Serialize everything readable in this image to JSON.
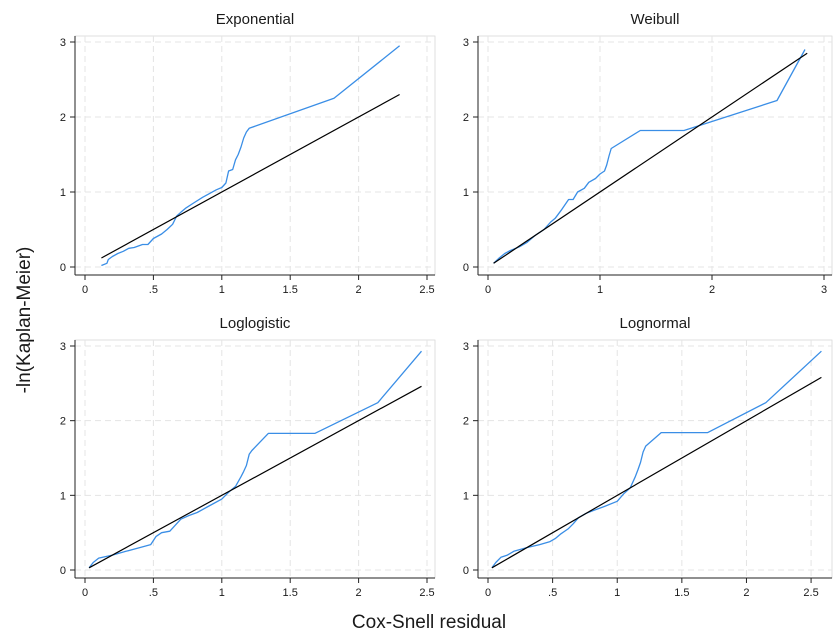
{
  "figure": {
    "ylabel": "-ln(Kaplan-Meier)",
    "xlabel": "Cox-Snell residual"
  },
  "colors": {
    "km_series": "#3a8ee6",
    "reference_line": "#000000"
  },
  "chart_data": [
    {
      "type": "line",
      "title": "Exponential",
      "xlim": [
        0,
        2.5
      ],
      "ylim": [
        0,
        3
      ],
      "xticks": [
        0,
        0.5,
        1,
        1.5,
        2,
        2.5
      ],
      "xtick_labels": [
        "0",
        ".5",
        "1",
        "1.5",
        "2",
        "2.5"
      ],
      "yticks": [
        0,
        1,
        2,
        3
      ],
      "ytick_labels": [
        "0",
        "1",
        "2",
        "3"
      ],
      "grid": true,
      "series": [
        {
          "x": [
            0.12,
            0.16,
            0.17,
            0.2,
            0.24,
            0.28,
            0.32,
            0.36,
            0.42,
            0.46,
            0.5,
            0.56,
            0.6,
            0.64,
            0.67,
            0.7,
            0.74,
            0.8,
            0.86,
            0.9,
            0.96,
            1.0,
            1.03,
            1.05,
            1.08,
            1.1,
            1.12,
            1.14,
            1.16,
            1.18,
            1.2,
            1.82,
            2.3
          ],
          "y": [
            0.02,
            0.05,
            0.1,
            0.14,
            0.18,
            0.21,
            0.25,
            0.26,
            0.3,
            0.3,
            0.38,
            0.44,
            0.5,
            0.57,
            0.68,
            0.73,
            0.79,
            0.86,
            0.93,
            0.97,
            1.03,
            1.06,
            1.12,
            1.28,
            1.3,
            1.43,
            1.5,
            1.6,
            1.72,
            1.8,
            1.85,
            2.25,
            2.95
          ]
        },
        {
          "x": [
            0.12,
            2.3
          ],
          "y": [
            0.12,
            2.3
          ]
        }
      ]
    },
    {
      "type": "line",
      "title": "Weibull",
      "xlim": [
        0,
        3
      ],
      "ylim": [
        0,
        3
      ],
      "xticks": [
        0,
        1,
        2,
        3
      ],
      "xtick_labels": [
        "0",
        "1",
        "2",
        "3"
      ],
      "yticks": [
        0,
        1,
        2,
        3
      ],
      "ytick_labels": [
        "0",
        "1",
        "2",
        "3"
      ],
      "grid": true,
      "series": [
        {
          "x": [
            0.05,
            0.1,
            0.15,
            0.2,
            0.28,
            0.35,
            0.42,
            0.5,
            0.56,
            0.6,
            0.66,
            0.72,
            0.76,
            0.8,
            0.86,
            0.9,
            0.96,
            1.0,
            1.04,
            1.06,
            1.08,
            1.1,
            1.36,
            1.75,
            2.58,
            2.83
          ],
          "y": [
            0.05,
            0.12,
            0.18,
            0.22,
            0.27,
            0.33,
            0.42,
            0.5,
            0.6,
            0.65,
            0.77,
            0.9,
            0.9,
            1.0,
            1.05,
            1.13,
            1.18,
            1.24,
            1.28,
            1.36,
            1.48,
            1.58,
            1.82,
            1.82,
            2.22,
            2.9
          ]
        },
        {
          "x": [
            0.05,
            2.85
          ],
          "y": [
            0.05,
            2.85
          ]
        }
      ]
    },
    {
      "type": "line",
      "title": "Loglogistic",
      "xlim": [
        0,
        2.5
      ],
      "ylim": [
        0,
        3
      ],
      "xticks": [
        0,
        0.5,
        1,
        1.5,
        2,
        2.5
      ],
      "xtick_labels": [
        "0",
        ".5",
        "1",
        "1.5",
        "2",
        "2.5"
      ],
      "yticks": [
        0,
        1,
        2,
        3
      ],
      "ytick_labels": [
        "0",
        "1",
        "2",
        "3"
      ],
      "grid": true,
      "series": [
        {
          "x": [
            0.03,
            0.06,
            0.1,
            0.15,
            0.2,
            0.3,
            0.4,
            0.48,
            0.52,
            0.56,
            0.62,
            0.66,
            0.7,
            0.76,
            0.82,
            0.9,
            1.0,
            1.05,
            1.1,
            1.14,
            1.16,
            1.18,
            1.2,
            1.22,
            1.34,
            1.68,
            2.14,
            2.46
          ],
          "y": [
            0.03,
            0.1,
            0.16,
            0.18,
            0.2,
            0.25,
            0.3,
            0.34,
            0.45,
            0.5,
            0.52,
            0.6,
            0.68,
            0.73,
            0.77,
            0.85,
            0.95,
            1.04,
            1.12,
            1.25,
            1.32,
            1.4,
            1.55,
            1.6,
            1.83,
            1.83,
            2.24,
            2.93
          ]
        },
        {
          "x": [
            0.03,
            2.46
          ],
          "y": [
            0.03,
            2.46
          ]
        }
      ]
    },
    {
      "type": "line",
      "title": "Lognormal",
      "xlim": [
        0,
        2.6
      ],
      "ylim": [
        0,
        3
      ],
      "xticks": [
        0,
        0.5,
        1,
        1.5,
        2,
        2.5
      ],
      "xtick_labels": [
        "0",
        ".5",
        "1",
        "1.5",
        "2",
        "2.5"
      ],
      "yticks": [
        0,
        1,
        2,
        3
      ],
      "ytick_labels": [
        "0",
        "1",
        "2",
        "3"
      ],
      "grid": true,
      "series": [
        {
          "x": [
            0.03,
            0.06,
            0.1,
            0.15,
            0.2,
            0.3,
            0.4,
            0.48,
            0.52,
            0.56,
            0.62,
            0.66,
            0.7,
            0.76,
            0.82,
            0.9,
            1.0,
            1.05,
            1.1,
            1.14,
            1.16,
            1.18,
            1.2,
            1.22,
            1.34,
            1.7,
            2.15,
            2.58
          ],
          "y": [
            0.03,
            0.1,
            0.17,
            0.2,
            0.25,
            0.3,
            0.34,
            0.38,
            0.42,
            0.48,
            0.55,
            0.62,
            0.7,
            0.76,
            0.8,
            0.85,
            0.92,
            1.02,
            1.1,
            1.25,
            1.34,
            1.44,
            1.58,
            1.66,
            1.84,
            1.84,
            2.24,
            2.93
          ]
        },
        {
          "x": [
            0.03,
            2.58
          ],
          "y": [
            0.03,
            2.58
          ]
        }
      ]
    }
  ]
}
